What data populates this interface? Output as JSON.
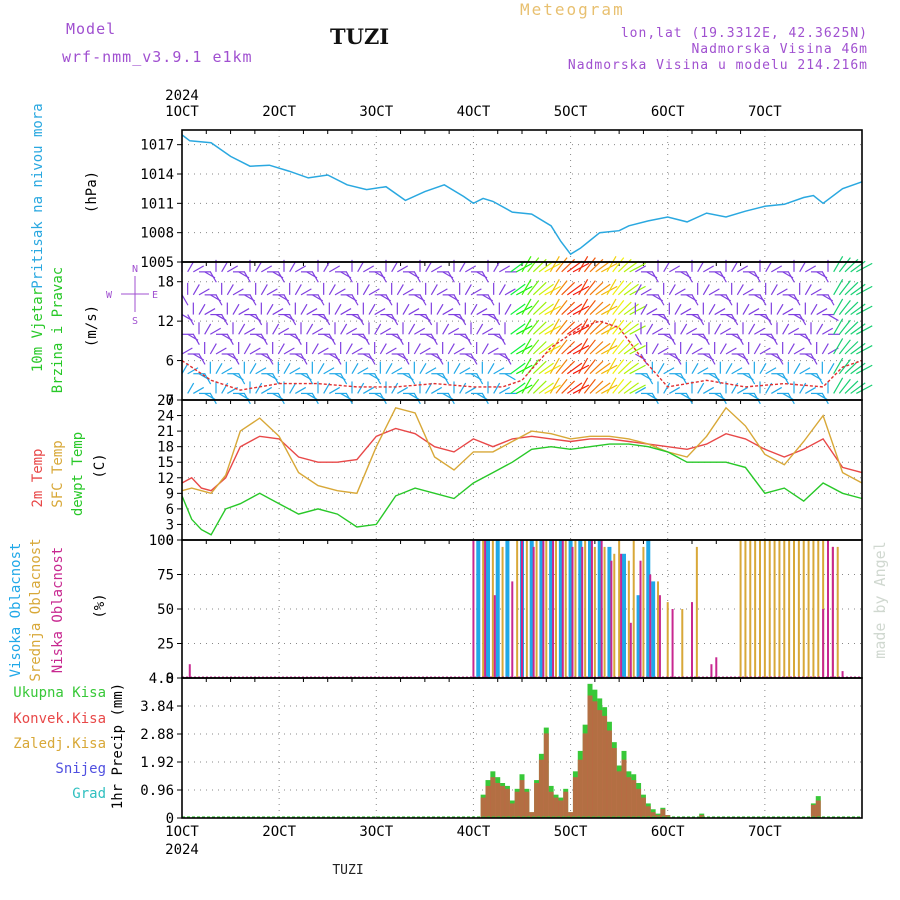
{
  "header": {
    "model_label": "Model",
    "model_name": "wrf-nmm_v3.9.1 e1km",
    "station": "TUZI",
    "meteogram_label": "Meteogram",
    "lonlat": "lon,lat (19.3312E, 42.3625N)",
    "elevation": "Nadmorska Visina 46m",
    "model_elevation": "Nadmorska Visina u modelu 214.216m",
    "footer_station": "TUZI",
    "credit": "made by Angel"
  },
  "time_axis": {
    "year": "2024",
    "labels": [
      "1OCT",
      "2OCT",
      "3OCT",
      "4OCT",
      "5OCT",
      "6OCT",
      "7OCT"
    ]
  },
  "colors": {
    "pressure": "#2aa8e0",
    "temp2m": "#e84848",
    "sfctemp": "#d8a838",
    "dewpt": "#28c828",
    "cloud_high": "#20a8e8",
    "cloud_mid": "#d8a838",
    "cloud_low": "#c82890",
    "precip_total": "#38c838",
    "precip_conv": "#e84848",
    "snow": "#5050e0",
    "grad": "#30c0c0",
    "header_purple": "#a050d0",
    "meteogram_gold": "#e8c070"
  },
  "chart_data": [
    {
      "type": "line",
      "ylabel": [
        "Pritisak na nivou mora",
        "(hPa)"
      ],
      "ylim": [
        1005,
        1018.5
      ],
      "yticks": [
        "1017",
        "1014",
        "1011",
        "1008",
        "1005"
      ],
      "x": [
        0,
        0.08,
        0.3,
        0.5,
        0.7,
        0.9,
        1.1,
        1.3,
        1.5,
        1.7,
        1.9,
        2.1,
        2.3,
        2.5,
        2.7,
        2.9,
        3.0,
        3.1,
        3.2,
        3.4,
        3.6,
        3.8,
        3.9,
        4.0,
        4.1,
        4.2,
        4.3,
        4.5,
        4.6,
        4.8,
        5.0,
        5.2,
        5.4,
        5.6,
        5.8,
        6.0,
        6.2,
        6.4,
        6.5,
        6.6,
        6.8,
        7.0
      ],
      "series": [
        {
          "values": [
            1018.0,
            1017.4,
            1017.2,
            1015.8,
            1014.8,
            1014.9,
            1014.3,
            1013.6,
            1013.9,
            1012.9,
            1012.4,
            1012.7,
            1011.3,
            1012.2,
            1012.9,
            1011.7,
            1011.0,
            1011.5,
            1011.2,
            1010.1,
            1009.9,
            1008.7,
            1007.1,
            1005.8,
            1006.4,
            1007.2,
            1008.0,
            1008.2,
            1008.7,
            1009.2,
            1009.6,
            1009.1,
            1010.0,
            1009.6,
            1010.2,
            1010.7,
            1010.9,
            1011.6,
            1011.8,
            1011.0,
            1012.5,
            1013.2
          ]
        }
      ]
    },
    {
      "type": "scatter",
      "ylabel": [
        "10m Vjetar",
        "Brzina i Pravac",
        "(m/s)"
      ],
      "ylim": [
        0,
        21
      ],
      "yticks": [
        "18",
        "12",
        "6",
        "0"
      ],
      "compass": [
        "N",
        "S",
        "W",
        "E"
      ],
      "x": [
        0,
        0.3,
        0.6,
        1.0,
        1.4,
        1.8,
        2.2,
        2.6,
        3.0,
        3.3,
        3.5,
        3.8,
        4.1,
        4.3,
        4.5,
        4.7,
        5.0,
        5.4,
        5.8,
        6.2,
        6.6,
        6.8,
        7.0
      ],
      "series": [
        {
          "values": [
            6,
            3,
            1.5,
            2.5,
            2.5,
            2,
            2,
            2.5,
            2,
            2,
            3,
            8,
            11,
            12,
            11,
            7,
            2,
            3,
            2,
            2.5,
            2,
            5,
            6
          ]
        }
      ]
    },
    {
      "type": "line",
      "ylabel": [
        "2m Temp",
        "SFC Temp",
        "dewpt Temp",
        "(C)"
      ],
      "ylim": [
        0,
        27
      ],
      "yticks": [
        "27",
        "24",
        "21",
        "18",
        "15",
        "12",
        "9",
        "6",
        "3",
        "0"
      ],
      "x": [
        0,
        0.1,
        0.2,
        0.3,
        0.45,
        0.6,
        0.8,
        1.0,
        1.2,
        1.4,
        1.6,
        1.8,
        2.0,
        2.2,
        2.4,
        2.6,
        2.8,
        3.0,
        3.2,
        3.4,
        3.6,
        3.8,
        4.0,
        4.2,
        4.4,
        4.6,
        4.8,
        5.0,
        5.2,
        5.4,
        5.6,
        5.8,
        6.0,
        6.2,
        6.4,
        6.6,
        6.8,
        7.0
      ],
      "series": [
        {
          "name": "2m Temp",
          "values": [
            11,
            12,
            10,
            9.5,
            12,
            18,
            20,
            19.5,
            16,
            15,
            15,
            15.5,
            20,
            21.5,
            20.5,
            18,
            17,
            19.5,
            18,
            19.5,
            20,
            19.5,
            19,
            19.5,
            19.5,
            19,
            18.5,
            18,
            17.5,
            18.5,
            20.5,
            19.5,
            17.5,
            16,
            17.5,
            19.5,
            14,
            13
          ]
        },
        {
          "name": "SFC Temp",
          "values": [
            9.5,
            10,
            9.5,
            9,
            12.5,
            21,
            23.5,
            20,
            13,
            10.5,
            9.5,
            9,
            18,
            25.5,
            24.5,
            16,
            13.5,
            17,
            17,
            19,
            21,
            20.5,
            19.5,
            20,
            20,
            19.5,
            18.5,
            17,
            16,
            20,
            25.5,
            22,
            16.5,
            14.5,
            19,
            24,
            13,
            11
          ]
        },
        {
          "name": "dewpt Temp",
          "values": [
            8.5,
            4,
            2,
            1,
            6,
            7,
            9,
            7,
            5,
            6,
            5,
            2.5,
            3,
            8.5,
            10,
            9,
            8,
            11,
            13,
            15,
            17.5,
            18,
            17.5,
            18,
            18.5,
            18.5,
            18,
            17,
            15,
            15,
            15,
            14,
            9,
            10,
            7.5,
            11,
            9,
            8
          ]
        }
      ]
    },
    {
      "type": "bar",
      "ylabel": [
        "Visoka Oblacnost",
        "Srednja Oblacnost",
        "Niska Oblacnost",
        "(%)"
      ],
      "ylim": [
        0,
        100
      ],
      "yticks": [
        "100",
        "75",
        "50",
        "25",
        "0"
      ],
      "series": [
        {
          "name": "Visoka Oblacnost",
          "x": [
            3.05,
            3.15,
            3.25,
            3.35,
            3.5,
            3.6,
            3.7,
            3.8,
            3.9,
            4.0,
            4.1,
            4.2,
            4.3,
            4.4,
            4.55,
            4.7,
            4.8,
            4.85
          ],
          "values": [
            100,
            100,
            100,
            100,
            100,
            100,
            100,
            100,
            100,
            100,
            100,
            100,
            100,
            95,
            90,
            60,
            100,
            70
          ]
        },
        {
          "name": "Srednja Oblacnost",
          "x": [
            3.1,
            3.2,
            3.3,
            3.45,
            3.55,
            3.65,
            3.75,
            3.85,
            3.95,
            4.05,
            4.15,
            4.25,
            4.35,
            4.45,
            4.5,
            4.6,
            4.65,
            4.75,
            4.9,
            5.0,
            5.15,
            5.3,
            5.75,
            5.8,
            5.85,
            5.9,
            5.95,
            6.0,
            6.05,
            6.1,
            6.15,
            6.2,
            6.25,
            6.3,
            6.35,
            6.4,
            6.45,
            6.5,
            6.55,
            6.6,
            6.65,
            6.7,
            6.75
          ],
          "values": [
            100,
            100,
            95,
            100,
            100,
            100,
            100,
            100,
            100,
            100,
            100,
            95,
            95,
            90,
            100,
            85,
            100,
            95,
            70,
            55,
            50,
            95,
            100,
            100,
            100,
            100,
            100,
            100,
            100,
            100,
            100,
            100,
            100,
            100,
            100,
            100,
            100,
            100,
            100,
            100,
            35,
            95,
            95
          ]
        },
        {
          "name": "Niska Oblacnost",
          "x": [
            0.08,
            3.0,
            3.12,
            3.22,
            3.4,
            3.5,
            3.62,
            3.72,
            3.82,
            3.92,
            4.02,
            4.12,
            4.22,
            4.32,
            4.42,
            4.52,
            4.62,
            4.72,
            4.82,
            4.92,
            5.05,
            5.25,
            5.45,
            5.5,
            6.6,
            6.65,
            6.7,
            6.8
          ],
          "values": [
            10,
            100,
            100,
            60,
            70,
            100,
            95,
            100,
            100,
            100,
            95,
            95,
            100,
            100,
            85,
            90,
            40,
            85,
            75,
            60,
            50,
            55,
            10,
            15,
            50,
            100,
            95,
            5
          ]
        }
      ]
    },
    {
      "type": "bar",
      "ylabel": [
        "1hr Precip (mm)"
      ],
      "legend": [
        "Ukupna Kisa",
        "Konvek.Kisa",
        "Zaledj.Kisa",
        "Snijeg",
        "Grad"
      ],
      "ylim": [
        0,
        4.8
      ],
      "yticks": [
        "4.8",
        "3.84",
        "2.88",
        "1.92",
        "0.96",
        "0"
      ],
      "x": [
        3.1,
        3.15,
        3.2,
        3.25,
        3.3,
        3.35,
        3.4,
        3.45,
        3.5,
        3.55,
        3.6,
        3.65,
        3.7,
        3.75,
        3.8,
        3.85,
        3.9,
        3.95,
        4.0,
        4.05,
        4.1,
        4.15,
        4.2,
        4.25,
        4.3,
        4.35,
        4.4,
        4.45,
        4.5,
        4.55,
        4.6,
        4.65,
        4.7,
        4.75,
        4.8,
        4.85,
        4.9,
        4.95,
        5.0,
        5.35,
        6.5,
        6.55
      ],
      "series": [
        {
          "name": "Ukupna Kisa",
          "values": [
            0.8,
            1.3,
            1.6,
            1.4,
            1.2,
            1.1,
            0.6,
            1.0,
            1.5,
            1.0,
            0.2,
            1.3,
            2.2,
            3.1,
            1.1,
            0.8,
            0.7,
            1.0,
            0.2,
            1.6,
            2.3,
            3.2,
            4.6,
            4.4,
            4.1,
            3.8,
            3.3,
            2.6,
            1.8,
            2.3,
            1.6,
            1.5,
            1.2,
            0.8,
            0.5,
            0.3,
            0.15,
            0.35,
            0.1,
            0.15,
            0.5,
            0.75
          ]
        },
        {
          "name": "Konvek.Kisa",
          "values": [
            0.7,
            1.1,
            1.4,
            1.2,
            1.1,
            1.0,
            0.5,
            0.9,
            1.3,
            0.9,
            0.2,
            1.2,
            2.0,
            2.9,
            0.9,
            0.7,
            0.6,
            0.9,
            0.2,
            1.4,
            2.0,
            2.9,
            4.2,
            4.0,
            3.7,
            3.5,
            3.0,
            2.4,
            1.6,
            2.0,
            1.4,
            1.3,
            1.0,
            0.7,
            0.4,
            0.2,
            0.1,
            0.3,
            0.1,
            0.1,
            0.45,
            0.6
          ]
        }
      ]
    }
  ]
}
